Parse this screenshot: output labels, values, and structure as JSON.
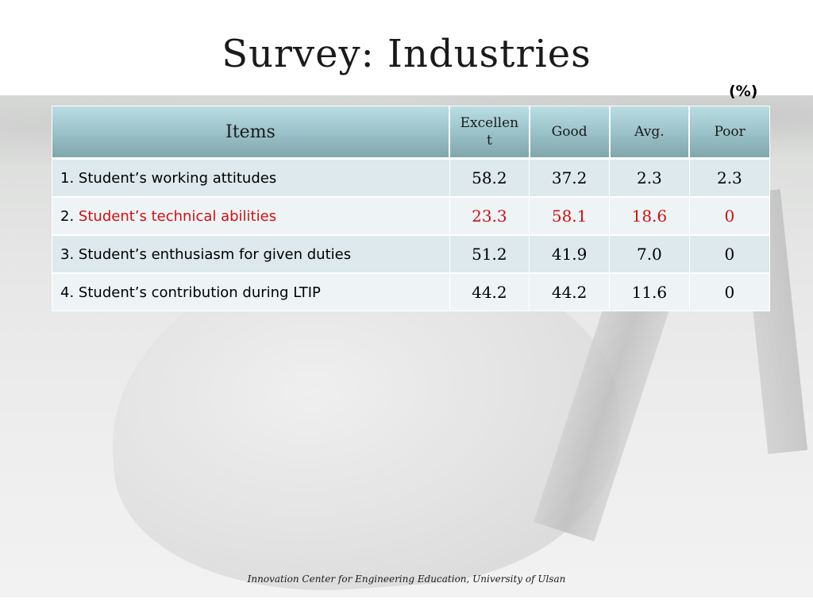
{
  "slide": {
    "title": "Survey: Industries",
    "unit": "(%)",
    "footer": "Innovation Center for Engineering Education, University of Ulsan"
  },
  "table": {
    "headers": {
      "items": "Items",
      "excellent": "Excellent",
      "good": "Good",
      "avg": "Avg.",
      "poor": "Poor"
    },
    "rows": [
      {
        "number": "1.",
        "label": "Student’s working attitudes",
        "excellent": "58.2",
        "good": "37.2",
        "avg": "2.3",
        "poor": "2.3"
      },
      {
        "number": "2.",
        "label": "Student’s technical abilities",
        "excellent": "23.3",
        "good": "58.1",
        "avg": "18.6",
        "poor": "0"
      },
      {
        "number": "3.",
        "label": "Student’s enthusiasm for given duties",
        "excellent": "51.2",
        "good": "41.9",
        "avg": "7.0",
        "poor": "0"
      },
      {
        "number": "4.",
        "label": "Student’s contribution during LTIP",
        "excellent": "44.2",
        "good": "44.2",
        "avg": "11.6",
        "poor": "0"
      }
    ]
  },
  "colors": {
    "highlight_text": "#d01010",
    "header_bg": "#9ec6cc",
    "row_dark": "#dde9ec",
    "row_light": "#eef4f6"
  }
}
